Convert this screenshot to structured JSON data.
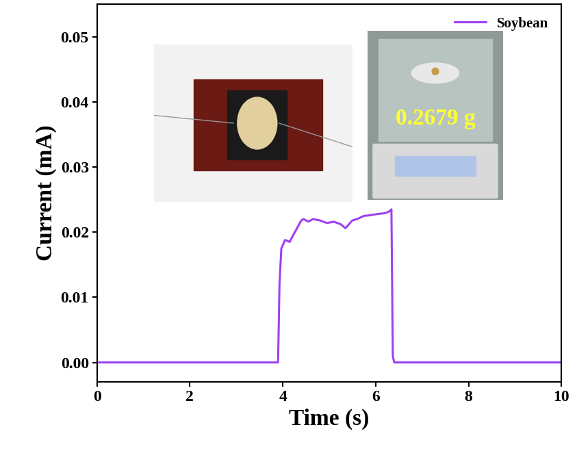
{
  "chart_data": {
    "type": "line",
    "x_label": "Time (s)",
    "y_label": "Current (mA)",
    "annotations": [
      "0.2679 g"
    ],
    "legend": "upper right",
    "series": [
      {
        "name": "Soybean",
        "color": "#a040f0",
        "line_style": "solid",
        "x": [
          0,
          1,
          2,
          3,
          3.9,
          3.93,
          3.97,
          4.05,
          4.15,
          4.2,
          4.3,
          4.4,
          4.45,
          4.55,
          4.65,
          4.8,
          4.95,
          5.1,
          5.25,
          5.35,
          5.4,
          5.5,
          5.6,
          5.75,
          5.9,
          6.05,
          6.2,
          6.3,
          6.34,
          6.37,
          6.4,
          7,
          8,
          9,
          10
        ],
        "values": [
          0,
          0,
          0,
          0,
          0,
          0.012,
          0.0175,
          0.0188,
          0.0185,
          0.0192,
          0.0205,
          0.0218,
          0.022,
          0.0216,
          0.022,
          0.0218,
          0.0214,
          0.0216,
          0.0212,
          0.0206,
          0.021,
          0.0218,
          0.022,
          0.0225,
          0.0226,
          0.0228,
          0.0229,
          0.0232,
          0.0235,
          0.001,
          0,
          0,
          0,
          0,
          0
        ]
      }
    ],
    "xlim": [
      0,
      10
    ],
    "xticks": [
      0,
      2,
      4,
      6,
      8,
      10
    ],
    "ylim": [
      -0.003,
      0.055
    ],
    "yticks": [
      {
        "value": 0.0,
        "label": "0.00"
      },
      {
        "value": 0.01,
        "label": "0.01"
      },
      {
        "value": 0.02,
        "label": "0.02"
      },
      {
        "value": 0.03,
        "label": "0.03"
      },
      {
        "value": 0.04,
        "label": "0.04"
      },
      {
        "value": 0.05,
        "label": "0.05"
      }
    ]
  }
}
